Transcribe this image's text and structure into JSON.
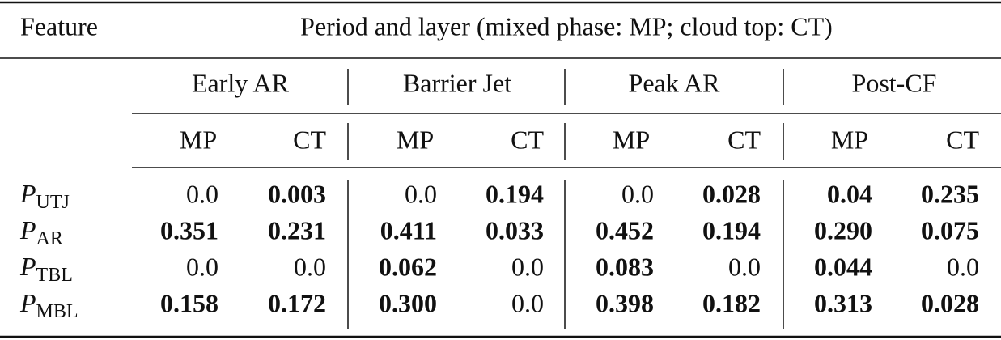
{
  "header": {
    "feature": "Feature",
    "period": "Period and layer (mixed phase: MP; cloud top: CT)"
  },
  "table": {
    "groups": [
      {
        "name": "Early AR",
        "layers": [
          "MP",
          "CT"
        ]
      },
      {
        "name": "Barrier Jet",
        "layers": [
          "MP",
          "CT"
        ]
      },
      {
        "name": "Peak AR",
        "layers": [
          "MP",
          "CT"
        ]
      },
      {
        "name": "Post-CF",
        "layers": [
          "MP",
          "CT"
        ]
      }
    ],
    "rows": [
      {
        "feature": {
          "symbol": "P",
          "subscript": "UTJ"
        },
        "cells": [
          {
            "text": "0.0",
            "bold": false
          },
          {
            "text": "0.003",
            "bold": true
          },
          {
            "text": "0.0",
            "bold": false
          },
          {
            "text": "0.194",
            "bold": true
          },
          {
            "text": "0.0",
            "bold": false
          },
          {
            "text": "0.028",
            "bold": true
          },
          {
            "text": "0.04",
            "bold": true
          },
          {
            "text": "0.235",
            "bold": true
          }
        ]
      },
      {
        "feature": {
          "symbol": "P",
          "subscript": "AR"
        },
        "cells": [
          {
            "text": "0.351",
            "bold": true
          },
          {
            "text": "0.231",
            "bold": true
          },
          {
            "text": "0.411",
            "bold": true
          },
          {
            "text": "0.033",
            "bold": true
          },
          {
            "text": "0.452",
            "bold": true
          },
          {
            "text": "0.194",
            "bold": true
          },
          {
            "text": "0.290",
            "bold": true
          },
          {
            "text": "0.075",
            "bold": true
          }
        ]
      },
      {
        "feature": {
          "symbol": "P",
          "subscript": "TBL"
        },
        "cells": [
          {
            "text": "0.0",
            "bold": false
          },
          {
            "text": "0.0",
            "bold": false
          },
          {
            "text": "0.062",
            "bold": true
          },
          {
            "text": "0.0",
            "bold": false
          },
          {
            "text": "0.083",
            "bold": true
          },
          {
            "text": "0.0",
            "bold": false
          },
          {
            "text": "0.044",
            "bold": true
          },
          {
            "text": "0.0",
            "bold": false
          }
        ]
      },
      {
        "feature": {
          "symbol": "P",
          "subscript": "MBL"
        },
        "cells": [
          {
            "text": "0.158",
            "bold": true
          },
          {
            "text": "0.172",
            "bold": true
          },
          {
            "text": "0.300",
            "bold": true
          },
          {
            "text": "0.0",
            "bold": false
          },
          {
            "text": "0.398",
            "bold": true
          },
          {
            "text": "0.182",
            "bold": true
          },
          {
            "text": "0.313",
            "bold": true
          },
          {
            "text": "0.028",
            "bold": true
          }
        ]
      }
    ]
  }
}
